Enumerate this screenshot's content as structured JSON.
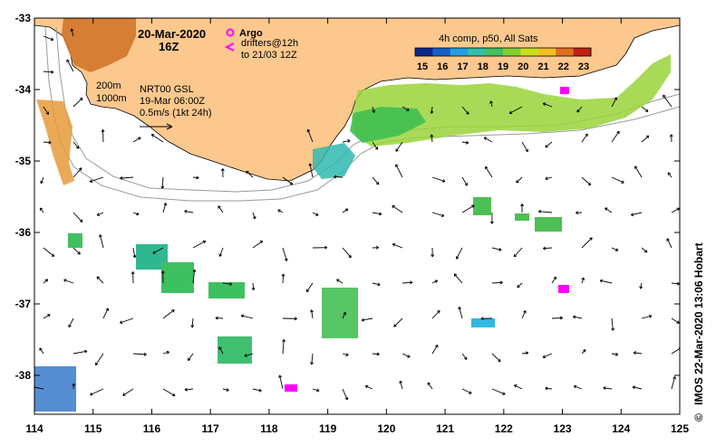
{
  "map": {
    "date": "20-Mar-2020",
    "hour": "16Z",
    "argo_label": "Argo",
    "drifters_line1": "drifters@12h",
    "drifters_line2": "to 21/03 12Z",
    "contour_200": "200m",
    "contour_1000": "1000m",
    "model_line1": "NRT00 GSL",
    "model_line2": "19-Mar 06:00Z",
    "scale_label": "0.5m/s (1kt 24h)",
    "colorbar_title": "4h comp, p50, All Sats",
    "colorbar_ticks": [
      "15",
      "16",
      "17",
      "18",
      "19",
      "20",
      "21",
      "22",
      "23"
    ],
    "colorbar_colors": [
      "#0a2a8a",
      "#1560c8",
      "#20a0e0",
      "#30c0a8",
      "#40c060",
      "#80d030",
      "#c8e020",
      "#f0c020",
      "#e07020",
      "#c02018"
    ],
    "x_ticks": [
      "114",
      "115",
      "116",
      "117",
      "118",
      "119",
      "120",
      "121",
      "122",
      "123",
      "124",
      "125"
    ],
    "y_ticks": [
      "-33",
      "-34",
      "-35",
      "-36",
      "-37",
      "-38"
    ],
    "credit": "IMOS 22-Mar-2020 13:06 Hobart",
    "copyright_symbol": "©",
    "land_color": "#fcc88e",
    "argo_color": "#ff00ff"
  }
}
